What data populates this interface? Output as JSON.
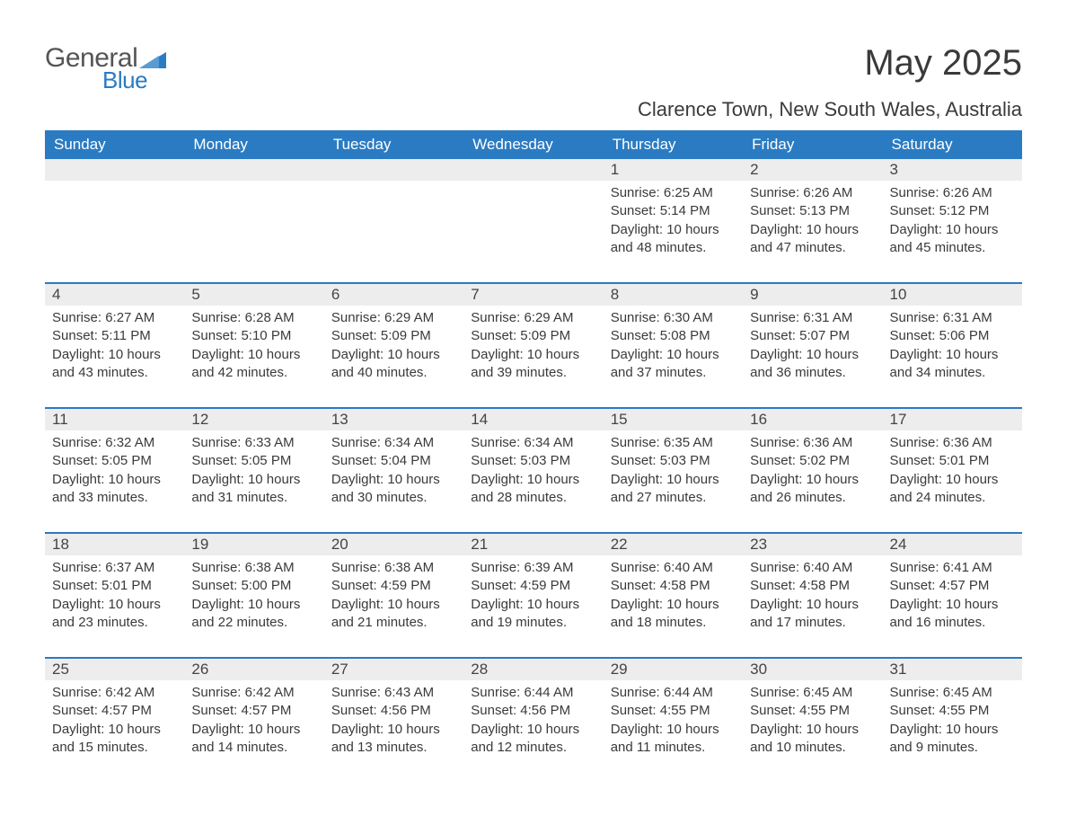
{
  "logo": {
    "word1": "General",
    "word2": "Blue",
    "icon_color": "#2a7bc2"
  },
  "title": "May 2025",
  "location": "Clarence Town, New South Wales, Australia",
  "colors": {
    "header_bg": "#2a7bc2",
    "header_text": "#ffffff",
    "daynum_bg": "#ededed",
    "divider": "#2a7bc2",
    "body_text": "#3a3a3a",
    "page_bg": "#ffffff"
  },
  "typography": {
    "title_fontsize": 40,
    "location_fontsize": 22,
    "dayhead_fontsize": 17,
    "daynum_fontsize": 17,
    "body_fontsize": 15
  },
  "day_headers": [
    "Sunday",
    "Monday",
    "Tuesday",
    "Wednesday",
    "Thursday",
    "Friday",
    "Saturday"
  ],
  "weeks": [
    [
      null,
      null,
      null,
      null,
      {
        "n": "1",
        "sunrise": "6:25 AM",
        "sunset": "5:14 PM",
        "dl_h": "10",
        "dl_m": "48"
      },
      {
        "n": "2",
        "sunrise": "6:26 AM",
        "sunset": "5:13 PM",
        "dl_h": "10",
        "dl_m": "47"
      },
      {
        "n": "3",
        "sunrise": "6:26 AM",
        "sunset": "5:12 PM",
        "dl_h": "10",
        "dl_m": "45"
      }
    ],
    [
      {
        "n": "4",
        "sunrise": "6:27 AM",
        "sunset": "5:11 PM",
        "dl_h": "10",
        "dl_m": "43"
      },
      {
        "n": "5",
        "sunrise": "6:28 AM",
        "sunset": "5:10 PM",
        "dl_h": "10",
        "dl_m": "42"
      },
      {
        "n": "6",
        "sunrise": "6:29 AM",
        "sunset": "5:09 PM",
        "dl_h": "10",
        "dl_m": "40"
      },
      {
        "n": "7",
        "sunrise": "6:29 AM",
        "sunset": "5:09 PM",
        "dl_h": "10",
        "dl_m": "39"
      },
      {
        "n": "8",
        "sunrise": "6:30 AM",
        "sunset": "5:08 PM",
        "dl_h": "10",
        "dl_m": "37"
      },
      {
        "n": "9",
        "sunrise": "6:31 AM",
        "sunset": "5:07 PM",
        "dl_h": "10",
        "dl_m": "36"
      },
      {
        "n": "10",
        "sunrise": "6:31 AM",
        "sunset": "5:06 PM",
        "dl_h": "10",
        "dl_m": "34"
      }
    ],
    [
      {
        "n": "11",
        "sunrise": "6:32 AM",
        "sunset": "5:05 PM",
        "dl_h": "10",
        "dl_m": "33"
      },
      {
        "n": "12",
        "sunrise": "6:33 AM",
        "sunset": "5:05 PM",
        "dl_h": "10",
        "dl_m": "31"
      },
      {
        "n": "13",
        "sunrise": "6:34 AM",
        "sunset": "5:04 PM",
        "dl_h": "10",
        "dl_m": "30"
      },
      {
        "n": "14",
        "sunrise": "6:34 AM",
        "sunset": "5:03 PM",
        "dl_h": "10",
        "dl_m": "28"
      },
      {
        "n": "15",
        "sunrise": "6:35 AM",
        "sunset": "5:03 PM",
        "dl_h": "10",
        "dl_m": "27"
      },
      {
        "n": "16",
        "sunrise": "6:36 AM",
        "sunset": "5:02 PM",
        "dl_h": "10",
        "dl_m": "26"
      },
      {
        "n": "17",
        "sunrise": "6:36 AM",
        "sunset": "5:01 PM",
        "dl_h": "10",
        "dl_m": "24"
      }
    ],
    [
      {
        "n": "18",
        "sunrise": "6:37 AM",
        "sunset": "5:01 PM",
        "dl_h": "10",
        "dl_m": "23"
      },
      {
        "n": "19",
        "sunrise": "6:38 AM",
        "sunset": "5:00 PM",
        "dl_h": "10",
        "dl_m": "22"
      },
      {
        "n": "20",
        "sunrise": "6:38 AM",
        "sunset": "4:59 PM",
        "dl_h": "10",
        "dl_m": "21"
      },
      {
        "n": "21",
        "sunrise": "6:39 AM",
        "sunset": "4:59 PM",
        "dl_h": "10",
        "dl_m": "19"
      },
      {
        "n": "22",
        "sunrise": "6:40 AM",
        "sunset": "4:58 PM",
        "dl_h": "10",
        "dl_m": "18"
      },
      {
        "n": "23",
        "sunrise": "6:40 AM",
        "sunset": "4:58 PM",
        "dl_h": "10",
        "dl_m": "17"
      },
      {
        "n": "24",
        "sunrise": "6:41 AM",
        "sunset": "4:57 PM",
        "dl_h": "10",
        "dl_m": "16"
      }
    ],
    [
      {
        "n": "25",
        "sunrise": "6:42 AM",
        "sunset": "4:57 PM",
        "dl_h": "10",
        "dl_m": "15"
      },
      {
        "n": "26",
        "sunrise": "6:42 AM",
        "sunset": "4:57 PM",
        "dl_h": "10",
        "dl_m": "14"
      },
      {
        "n": "27",
        "sunrise": "6:43 AM",
        "sunset": "4:56 PM",
        "dl_h": "10",
        "dl_m": "13"
      },
      {
        "n": "28",
        "sunrise": "6:44 AM",
        "sunset": "4:56 PM",
        "dl_h": "10",
        "dl_m": "12"
      },
      {
        "n": "29",
        "sunrise": "6:44 AM",
        "sunset": "4:55 PM",
        "dl_h": "10",
        "dl_m": "11"
      },
      {
        "n": "30",
        "sunrise": "6:45 AM",
        "sunset": "4:55 PM",
        "dl_h": "10",
        "dl_m": "10"
      },
      {
        "n": "31",
        "sunrise": "6:45 AM",
        "sunset": "4:55 PM",
        "dl_h": "10",
        "dl_m": "9"
      }
    ]
  ],
  "labels": {
    "sunrise": "Sunrise:",
    "sunset": "Sunset:",
    "daylight_prefix": "Daylight:",
    "hours_word": "hours",
    "and_word": "and",
    "minutes_word": "minutes."
  }
}
